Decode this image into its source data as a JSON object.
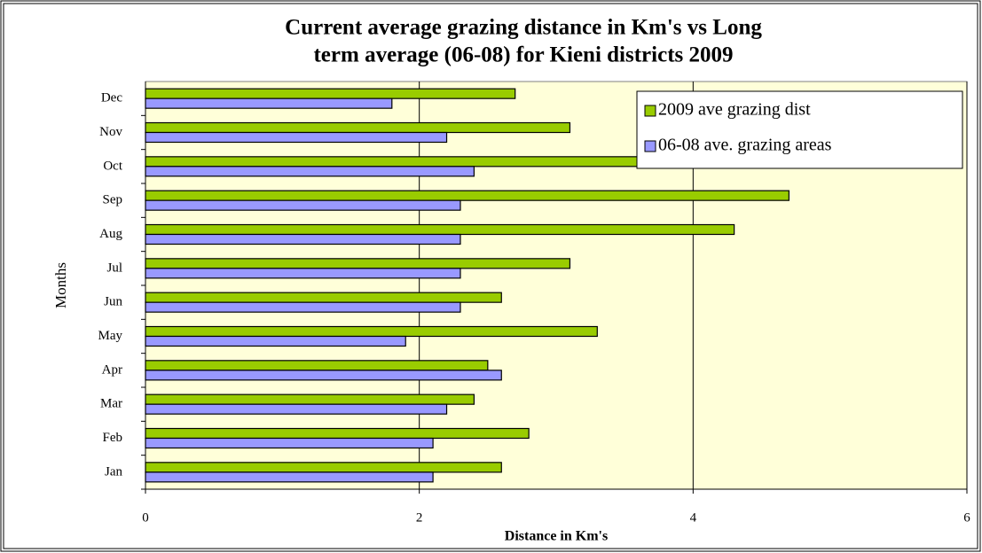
{
  "chart_data": {
    "type": "hbar",
    "title": "Current average grazing distance in Km's vs Long term average (06-08) for Kieni districts 2009",
    "x_label": "Distance in Km's",
    "y_label": "Months",
    "categories": [
      "Jan",
      "Feb",
      "Mar",
      "Apr",
      "May",
      "Jun",
      "Jul",
      "Aug",
      "Sep",
      "Oct",
      "Nov",
      "Dec"
    ],
    "series": [
      {
        "name": "2009 ave grazing dist",
        "color": "#99cc00",
        "values": [
          2.6,
          2.8,
          2.4,
          2.5,
          3.3,
          2.6,
          3.1,
          4.3,
          4.7,
          5.2,
          3.1,
          2.7
        ]
      },
      {
        "name": "06-08 ave. grazing areas",
        "color": "#9999ff",
        "values": [
          2.1,
          2.1,
          2.2,
          2.6,
          1.9,
          2.3,
          2.3,
          2.3,
          2.3,
          2.4,
          2.2,
          1.8
        ]
      }
    ],
    "xlim": [
      0,
      6
    ],
    "xticks": [
      0,
      2,
      4,
      6
    ],
    "grid": true,
    "legend": "top-right"
  }
}
